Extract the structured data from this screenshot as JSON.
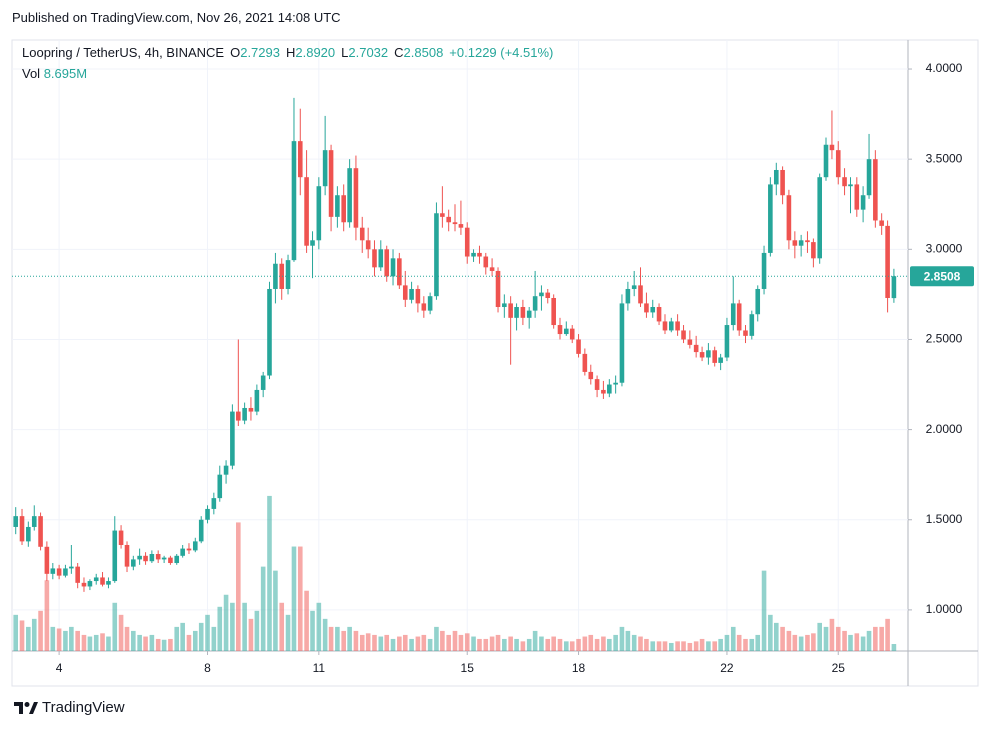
{
  "header": {
    "published": "Published on TradingView.com, Nov 26, 2021 14:08 UTC"
  },
  "chart_data": {
    "type": "candlestick",
    "symbol": "Loopring / TetherUS, 4h, BINANCE",
    "ohlc_legend": [
      {
        "key": "O",
        "value": "2.7293"
      },
      {
        "key": "H",
        "value": "2.8920"
      },
      {
        "key": "L",
        "value": "2.7032"
      },
      {
        "key": "C",
        "value": "2.8508"
      }
    ],
    "change": "+0.1229 (+4.51%)",
    "volume_label": "Vol",
    "volume_value": "8.695M",
    "candles": [
      [
        2.83,
        1.46,
        1.57,
        1.42,
        1.52,
        45
      ],
      [
        3,
        1.52,
        1.56,
        1.36,
        1.38,
        38
      ],
      [
        3.17,
        1.38,
        1.49,
        1.35,
        1.46,
        30
      ],
      [
        3.33,
        1.46,
        1.58,
        1.44,
        1.52,
        40
      ],
      [
        3.5,
        1.52,
        1.54,
        1.33,
        1.35,
        50
      ],
      [
        3.67,
        1.35,
        1.38,
        1.16,
        1.2,
        88
      ],
      [
        3.83,
        1.2,
        1.26,
        1.17,
        1.23,
        30
      ],
      [
        4,
        1.23,
        1.25,
        1.17,
        1.19,
        28
      ],
      [
        4.17,
        1.19,
        1.25,
        1.18,
        1.23,
        25
      ],
      [
        4.33,
        1.23,
        1.36,
        1.2,
        1.24,
        30
      ],
      [
        4.5,
        1.24,
        1.26,
        1.12,
        1.15,
        25
      ],
      [
        4.67,
        1.15,
        1.18,
        1.1,
        1.13,
        20
      ],
      [
        4.83,
        1.13,
        1.17,
        1.11,
        1.16,
        18
      ],
      [
        5,
        1.16,
        1.2,
        1.14,
        1.18,
        20
      ],
      [
        5.17,
        1.18,
        1.21,
        1.13,
        1.14,
        22
      ],
      [
        5.33,
        1.14,
        1.18,
        1.12,
        1.16,
        18
      ],
      [
        5.5,
        1.16,
        1.52,
        1.15,
        1.44,
        60
      ],
      [
        5.67,
        1.44,
        1.47,
        1.34,
        1.36,
        45
      ],
      [
        5.83,
        1.36,
        1.38,
        1.21,
        1.24,
        30
      ],
      [
        6,
        1.24,
        1.3,
        1.22,
        1.28,
        25
      ],
      [
        6.17,
        1.28,
        1.34,
        1.25,
        1.3,
        20
      ],
      [
        6.33,
        1.3,
        1.32,
        1.25,
        1.27,
        18
      ],
      [
        6.5,
        1.27,
        1.33,
        1.26,
        1.31,
        20
      ],
      [
        6.67,
        1.31,
        1.33,
        1.26,
        1.28,
        15
      ],
      [
        6.83,
        1.28,
        1.3,
        1.26,
        1.29,
        14
      ],
      [
        7,
        1.29,
        1.3,
        1.25,
        1.26,
        15
      ],
      [
        7.17,
        1.26,
        1.31,
        1.25,
        1.3,
        30
      ],
      [
        7.33,
        1.3,
        1.36,
        1.29,
        1.34,
        35
      ],
      [
        7.5,
        1.34,
        1.37,
        1.31,
        1.33,
        20
      ],
      [
        7.67,
        1.33,
        1.4,
        1.32,
        1.38,
        25
      ],
      [
        7.83,
        1.38,
        1.52,
        1.37,
        1.5,
        35
      ],
      [
        8,
        1.5,
        1.58,
        1.48,
        1.56,
        45
      ],
      [
        8.17,
        1.56,
        1.65,
        1.53,
        1.62,
        30
      ],
      [
        8.33,
        1.62,
        1.8,
        1.6,
        1.75,
        55
      ],
      [
        8.5,
        1.75,
        1.83,
        1.7,
        1.8,
        70
      ],
      [
        8.67,
        1.8,
        2.14,
        1.78,
        2.1,
        60
      ],
      [
        8.83,
        2.1,
        2.5,
        2.02,
        2.05,
        160
      ],
      [
        9,
        2.05,
        2.15,
        2.03,
        2.12,
        60
      ],
      [
        9.17,
        2.12,
        2.18,
        2.05,
        2.1,
        40
      ],
      [
        9.33,
        2.1,
        2.25,
        2.08,
        2.22,
        50
      ],
      [
        9.5,
        2.22,
        2.32,
        2.18,
        2.3,
        105
      ],
      [
        9.67,
        2.3,
        2.82,
        2.28,
        2.78,
        193
      ],
      [
        9.83,
        2.78,
        2.98,
        2.7,
        2.92,
        100
      ],
      [
        10,
        2.92,
        2.95,
        2.72,
        2.78,
        60
      ],
      [
        10.17,
        2.78,
        2.97,
        2.75,
        2.94,
        45
      ],
      [
        10.33,
        2.94,
        3.84,
        2.93,
        3.6,
        130
      ],
      [
        10.5,
        3.6,
        3.78,
        3.3,
        3.4,
        130
      ],
      [
        10.67,
        3.4,
        3.55,
        2.98,
        3.02,
        75
      ],
      [
        10.83,
        3.02,
        3.1,
        2.84,
        3.05,
        50
      ],
      [
        11,
        3.05,
        3.4,
        3,
        3.35,
        60
      ],
      [
        11.17,
        3.35,
        3.74,
        3.3,
        3.55,
        40
      ],
      [
        11.33,
        3.55,
        3.58,
        3.1,
        3.18,
        30
      ],
      [
        11.5,
        3.18,
        3.35,
        3.12,
        3.3,
        30
      ],
      [
        11.67,
        3.3,
        3.36,
        3.1,
        3.15,
        25
      ],
      [
        11.83,
        3.15,
        3.5,
        3.12,
        3.45,
        30
      ],
      [
        12,
        3.45,
        3.52,
        3.05,
        3.12,
        25
      ],
      [
        12.17,
        3.12,
        3.18,
        2.98,
        3.05,
        20
      ],
      [
        12.33,
        3.05,
        3.12,
        2.95,
        3,
        22
      ],
      [
        12.5,
        3,
        3.05,
        2.85,
        2.9,
        20
      ],
      [
        12.67,
        2.9,
        3.05,
        2.88,
        3,
        18
      ],
      [
        12.83,
        3,
        3.02,
        2.82,
        2.85,
        20
      ],
      [
        13,
        2.85,
        3,
        2.8,
        2.95,
        15
      ],
      [
        13.17,
        2.95,
        2.98,
        2.78,
        2.8,
        18
      ],
      [
        13.33,
        2.8,
        2.88,
        2.68,
        2.72,
        20
      ],
      [
        13.5,
        2.72,
        2.82,
        2.7,
        2.78,
        15
      ],
      [
        13.67,
        2.78,
        2.8,
        2.65,
        2.7,
        18
      ],
      [
        13.83,
        2.7,
        2.74,
        2.62,
        2.66,
        20
      ],
      [
        14,
        2.66,
        2.76,
        2.64,
        2.74,
        15
      ],
      [
        14.17,
        2.74,
        3.26,
        2.72,
        3.2,
        30
      ],
      [
        14.33,
        3.2,
        3.35,
        3.12,
        3.18,
        25
      ],
      [
        14.5,
        3.18,
        3.22,
        3.1,
        3.15,
        20
      ],
      [
        14.67,
        3.15,
        3.25,
        3.1,
        3.14,
        25
      ],
      [
        14.83,
        3.14,
        3.27,
        3.08,
        3.12,
        20
      ],
      [
        15,
        3.12,
        3.15,
        2.92,
        2.96,
        22
      ],
      [
        15.17,
        2.96,
        3,
        2.93,
        2.98,
        18
      ],
      [
        15.33,
        2.98,
        3.02,
        2.92,
        2.96,
        15
      ],
      [
        15.5,
        2.96,
        2.98,
        2.86,
        2.9,
        15
      ],
      [
        15.67,
        2.9,
        2.95,
        2.85,
        2.88,
        18
      ],
      [
        15.83,
        2.88,
        2.9,
        2.65,
        2.68,
        20
      ],
      [
        16,
        2.68,
        2.75,
        2.62,
        2.7,
        15
      ],
      [
        16.17,
        2.7,
        2.74,
        2.36,
        2.62,
        18
      ],
      [
        16.33,
        2.62,
        2.7,
        2.55,
        2.68,
        15
      ],
      [
        16.5,
        2.68,
        2.72,
        2.58,
        2.62,
        12
      ],
      [
        16.67,
        2.62,
        2.68,
        2.56,
        2.66,
        15
      ],
      [
        16.83,
        2.66,
        2.88,
        2.62,
        2.74,
        25
      ],
      [
        17,
        2.74,
        2.8,
        2.66,
        2.76,
        18
      ],
      [
        17.17,
        2.76,
        2.78,
        2.7,
        2.73,
        15
      ],
      [
        17.33,
        2.73,
        2.75,
        2.56,
        2.58,
        18
      ],
      [
        17.5,
        2.58,
        2.62,
        2.5,
        2.53,
        15
      ],
      [
        17.67,
        2.53,
        2.6,
        2.52,
        2.56,
        12
      ],
      [
        17.83,
        2.56,
        2.58,
        2.48,
        2.5,
        12
      ],
      [
        18,
        2.5,
        2.53,
        2.4,
        2.42,
        15
      ],
      [
        18.17,
        2.42,
        2.45,
        2.3,
        2.32,
        18
      ],
      [
        18.33,
        2.32,
        2.36,
        2.25,
        2.28,
        20
      ],
      [
        18.5,
        2.28,
        2.3,
        2.18,
        2.22,
        15
      ],
      [
        18.67,
        2.22,
        2.27,
        2.17,
        2.2,
        18
      ],
      [
        18.83,
        2.2,
        2.28,
        2.18,
        2.25,
        15
      ],
      [
        19,
        2.25,
        2.3,
        2.2,
        2.26,
        20
      ],
      [
        19.17,
        2.26,
        2.75,
        2.24,
        2.7,
        30
      ],
      [
        19.33,
        2.7,
        2.82,
        2.66,
        2.78,
        25
      ],
      [
        19.5,
        2.78,
        2.88,
        2.74,
        2.8,
        20
      ],
      [
        19.67,
        2.8,
        2.9,
        2.68,
        2.7,
        18
      ],
      [
        19.83,
        2.7,
        2.76,
        2.62,
        2.65,
        15
      ],
      [
        20,
        2.65,
        2.72,
        2.62,
        2.68,
        12
      ],
      [
        20.17,
        2.68,
        2.7,
        2.58,
        2.6,
        12
      ],
      [
        20.33,
        2.6,
        2.64,
        2.53,
        2.55,
        12
      ],
      [
        20.5,
        2.55,
        2.62,
        2.54,
        2.6,
        10
      ],
      [
        20.67,
        2.6,
        2.64,
        2.52,
        2.55,
        12
      ],
      [
        20.83,
        2.55,
        2.58,
        2.48,
        2.5,
        12
      ],
      [
        21,
        2.5,
        2.55,
        2.45,
        2.47,
        10
      ],
      [
        21.17,
        2.47,
        2.52,
        2.4,
        2.43,
        12
      ],
      [
        21.33,
        2.43,
        2.46,
        2.38,
        2.4,
        15
      ],
      [
        21.5,
        2.4,
        2.48,
        2.36,
        2.44,
        12
      ],
      [
        21.67,
        2.44,
        2.46,
        2.35,
        2.37,
        12
      ],
      [
        21.83,
        2.37,
        2.42,
        2.33,
        2.4,
        15
      ],
      [
        22,
        2.4,
        2.62,
        2.38,
        2.58,
        20
      ],
      [
        22.17,
        2.58,
        2.85,
        2.55,
        2.7,
        30
      ],
      [
        22.33,
        2.7,
        2.72,
        2.52,
        2.55,
        20
      ],
      [
        22.5,
        2.55,
        2.58,
        2.48,
        2.52,
        15
      ],
      [
        22.67,
        2.52,
        2.66,
        2.5,
        2.64,
        15
      ],
      [
        22.83,
        2.64,
        2.8,
        2.6,
        2.78,
        20
      ],
      [
        23,
        2.78,
        3.02,
        2.75,
        2.98,
        100
      ],
      [
        23.17,
        2.98,
        3.4,
        2.96,
        3.36,
        45
      ],
      [
        23.33,
        3.36,
        3.48,
        3.3,
        3.44,
        35
      ],
      [
        23.5,
        3.44,
        3.46,
        3.25,
        3.3,
        30
      ],
      [
        23.67,
        3.3,
        3.33,
        3,
        3.05,
        25
      ],
      [
        23.83,
        3.05,
        3.1,
        2.95,
        3.02,
        20
      ],
      [
        24,
        3.02,
        3.08,
        2.96,
        3.05,
        18
      ],
      [
        24.17,
        3.05,
        3.1,
        2.98,
        3.04,
        20
      ],
      [
        24.33,
        3.04,
        3.06,
        2.9,
        2.95,
        22
      ],
      [
        24.5,
        2.95,
        3.42,
        2.92,
        3.4,
        35
      ],
      [
        24.67,
        3.4,
        3.62,
        3.38,
        3.58,
        30
      ],
      [
        24.83,
        3.58,
        3.77,
        3.5,
        3.55,
        40
      ],
      [
        25,
        3.55,
        3.6,
        3.36,
        3.4,
        30
      ],
      [
        25.17,
        3.4,
        3.45,
        3.3,
        3.35,
        25
      ],
      [
        25.33,
        3.35,
        3.4,
        3.2,
        3.36,
        20
      ],
      [
        25.5,
        3.36,
        3.4,
        3.18,
        3.22,
        22
      ],
      [
        25.67,
        3.22,
        3.35,
        3.15,
        3.3,
        18
      ],
      [
        25.83,
        3.3,
        3.64,
        3.28,
        3.5,
        25
      ],
      [
        26,
        3.5,
        3.55,
        3.12,
        3.16,
        30
      ],
      [
        26.17,
        3.16,
        3.2,
        3.08,
        3.13,
        30
      ],
      [
        26.33,
        3.13,
        3.16,
        2.65,
        2.73,
        40
      ],
      [
        26.5,
        2.7293,
        2.892,
        2.7032,
        2.8508,
        8.695
      ]
    ],
    "xlim": [
      2.73,
      26.88
    ],
    "xticks": [
      4,
      8,
      11,
      15,
      18,
      22,
      25
    ],
    "ylim": [
      0.772,
      4.161
    ],
    "yticks": [
      {
        "value": 1,
        "label": "1.0000"
      },
      {
        "value": 1.5,
        "label": "1.5000"
      },
      {
        "value": 2,
        "label": "2.0000"
      },
      {
        "value": 2.5,
        "label": "2.5000"
      },
      {
        "value": 3,
        "label": "3.0000"
      },
      {
        "value": 3.5,
        "label": "3.5000"
      },
      {
        "value": 4,
        "label": "4.0000"
      }
    ],
    "volume_lim": [
      0,
      224
    ],
    "last_price": {
      "value": 2.8508,
      "label": "2.8508"
    },
    "up_color": "#26a69a",
    "down_color": "#ef5350",
    "grid": true
  },
  "footer": {
    "brand": "TradingView"
  }
}
